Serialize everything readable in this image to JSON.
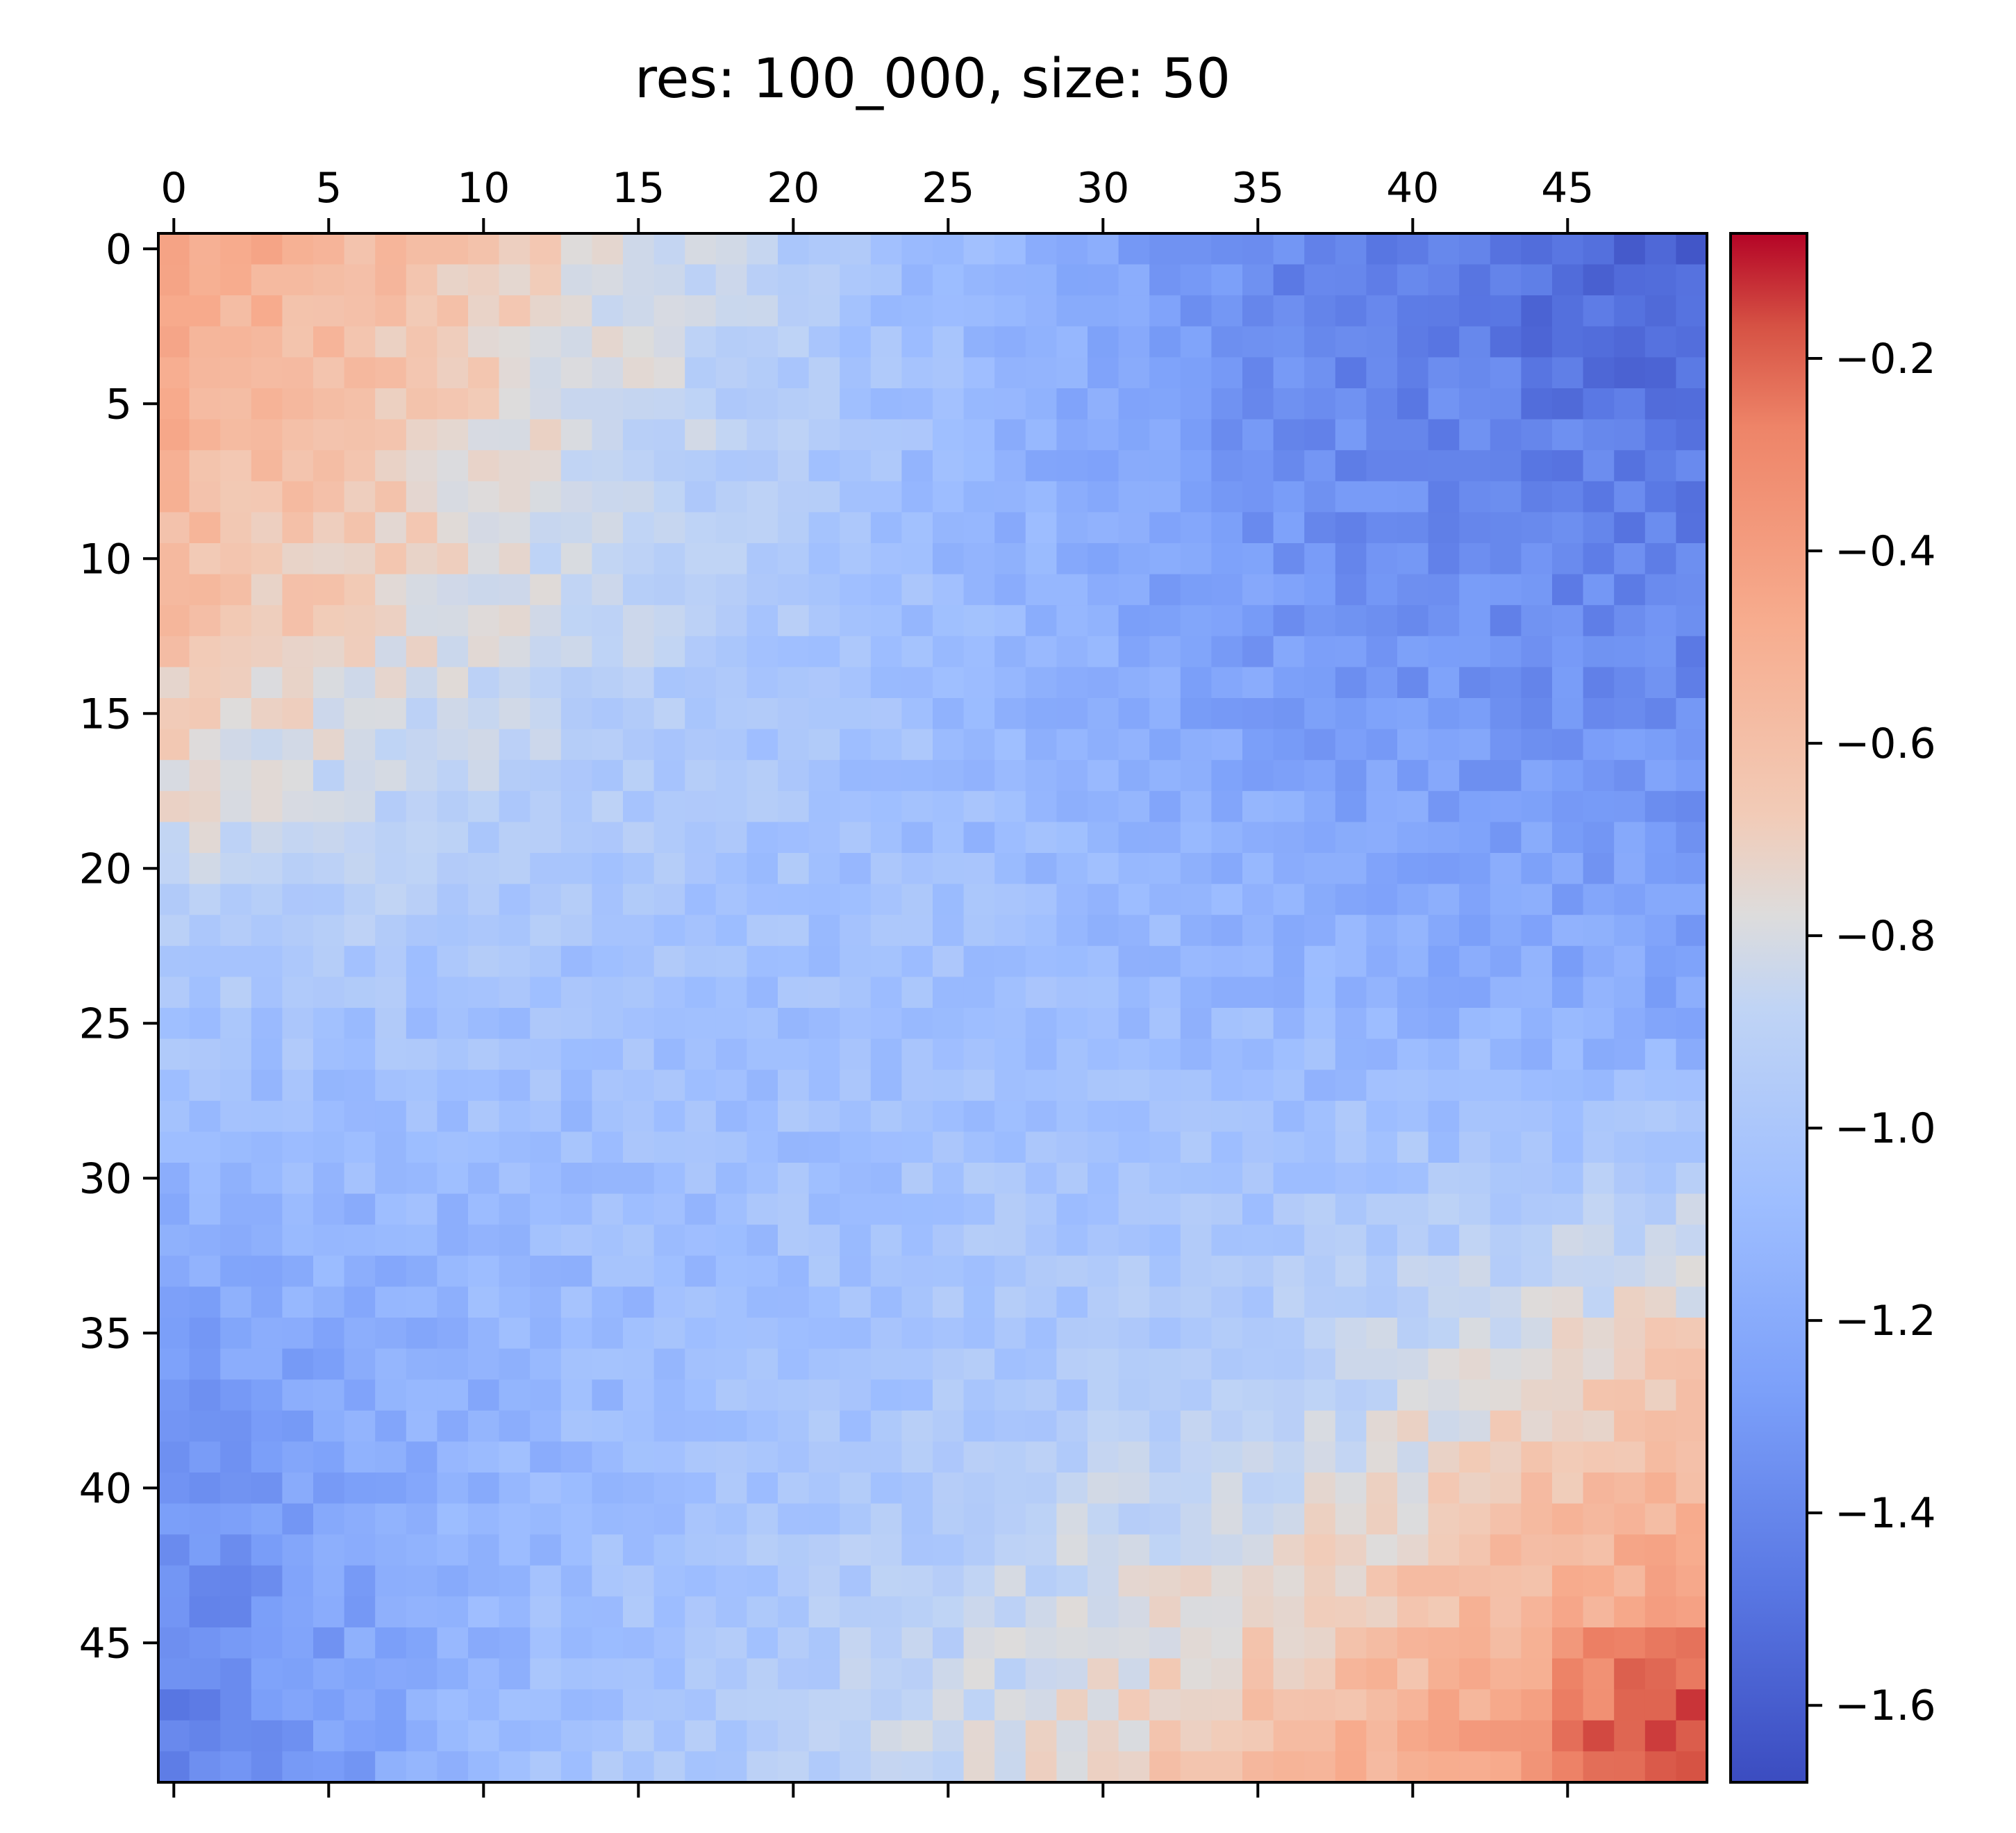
{
  "chart_data": {
    "type": "heatmap",
    "title": "res: 100_000, size: 50",
    "xlabel": "",
    "ylabel": "",
    "size": 50,
    "colormap": "coolwarm",
    "vmin": -1.68,
    "vmax": -0.07,
    "x_axis_position": "top",
    "x_tick_labels": [
      "0",
      "5",
      "10",
      "15",
      "20",
      "25",
      "30",
      "35",
      "40",
      "45"
    ],
    "y_tick_labels": [
      "0",
      "5",
      "10",
      "15",
      "20",
      "25",
      "30",
      "35",
      "40",
      "45"
    ],
    "colorbar": {
      "ticks": [
        -0.2,
        -0.4,
        -0.6,
        -0.8,
        -1.0,
        -1.2,
        -1.4,
        -1.6
      ],
      "tick_labels": [
        "−0.2",
        "−0.4",
        "−0.6",
        "−0.8",
        "−1.0",
        "−1.2",
        "−1.4",
        "−1.6"
      ],
      "position": "right"
    },
    "anchors": [
      [
        -0.45,
        -0.7,
        -1.08,
        -1.42,
        -1.52
      ],
      [
        -0.6,
        -0.85,
        -1.08,
        -1.32,
        -1.4
      ],
      [
        -1.0,
        -1.05,
        -1.05,
        -1.12,
        -1.22
      ],
      [
        -1.3,
        -1.12,
        -1.0,
        -0.9,
        -0.62
      ],
      [
        -1.45,
        -1.05,
        -0.85,
        -0.55,
        -0.25
      ]
    ],
    "grid": false,
    "legend": "none"
  }
}
